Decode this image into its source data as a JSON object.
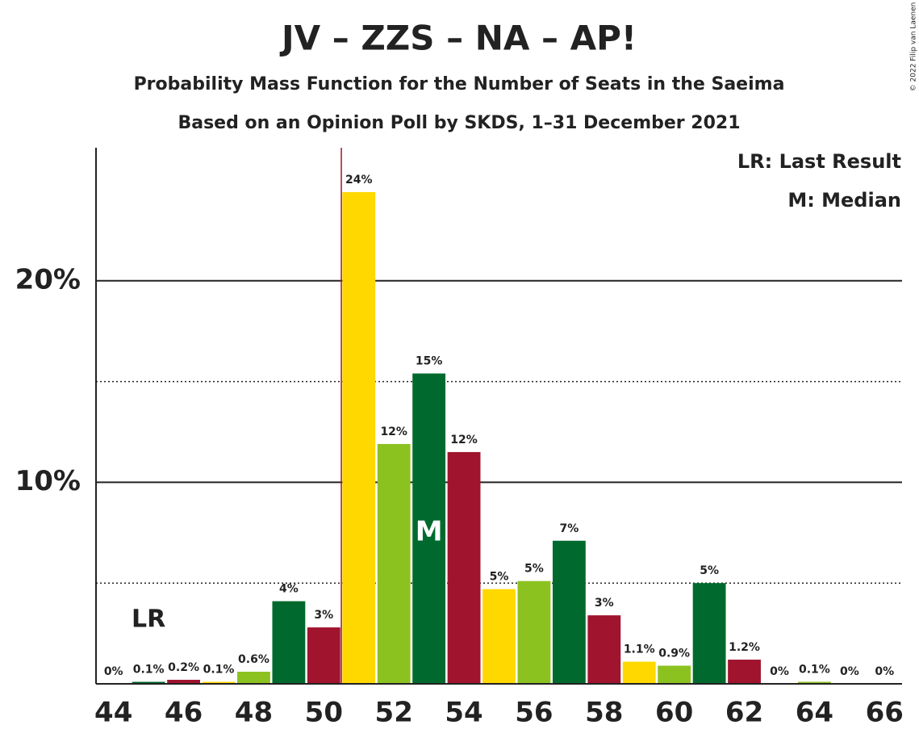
{
  "chart_data": {
    "type": "bar",
    "title": "JV – ZZS – NA – AP!",
    "subtitle": "Probability Mass Function for the Number of Seats in the Saeima",
    "subtitle2": "Based on an Opinion Poll by SKDS, 1–31 December 2021",
    "x": [
      44,
      45,
      46,
      47,
      48,
      49,
      50,
      51,
      52,
      53,
      54,
      55,
      56,
      57,
      58,
      59,
      60,
      61,
      62,
      63,
      64,
      65,
      66
    ],
    "values": [
      0,
      0.1,
      0.2,
      0.1,
      0.6,
      4.1,
      2.8,
      24.4,
      11.9,
      15.4,
      11.5,
      4.7,
      5.1,
      7.1,
      3.4,
      1.1,
      0.9,
      5.0,
      1.2,
      0,
      0.1,
      0,
      0
    ],
    "value_labels": [
      "0%",
      "0.1%",
      "0.2%",
      "0.1%",
      "0.6%",
      "4%",
      "3%",
      "24%",
      "12%",
      "15%",
      "12%",
      "5%",
      "5%",
      "7%",
      "3%",
      "1.1%",
      "0.9%",
      "5%",
      "1.2%",
      "0%",
      "0.1%",
      "0%",
      "0%"
    ],
    "colors": [
      "#8cc21f",
      "#006a2e",
      "#a0142e",
      "#ffd800",
      "#8cc21f",
      "#006a2e",
      "#a0142e",
      "#ffd800",
      "#8cc21f",
      "#006a2e",
      "#a0142e",
      "#ffd800",
      "#8cc21f",
      "#006a2e",
      "#a0142e",
      "#ffd800",
      "#8cc21f",
      "#006a2e",
      "#a0142e",
      "#ffd800",
      "#8cc21f",
      "#006a2e",
      "#a0142e"
    ],
    "xlim": [
      43.5,
      66.5
    ],
    "xticks": [
      44,
      46,
      48,
      50,
      52,
      54,
      56,
      58,
      60,
      62,
      64,
      66
    ],
    "ylim": [
      0,
      26.6
    ],
    "yticks": [
      {
        "value": 10,
        "label": "10%"
      },
      {
        "value": 20,
        "label": "20%"
      }
    ],
    "minor_yticks": [
      5,
      15
    ],
    "majority_line": 50.5,
    "last_result": {
      "x": 45,
      "label": "LR"
    },
    "median": {
      "x": 53,
      "label": "M"
    },
    "legend": [
      "LR: Last Result",
      "M: Median"
    ],
    "copyright": "© 2022 Filip van Laenen"
  }
}
